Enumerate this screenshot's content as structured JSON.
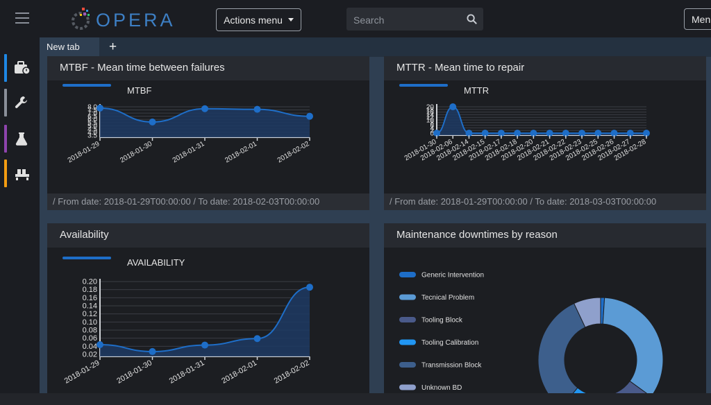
{
  "app": {
    "logo_text": "OPERA"
  },
  "toolbar": {
    "actions_label": "Actions menu",
    "search_placeholder": "Search",
    "menu_label": "Menu"
  },
  "sidebar": {
    "items": [
      {
        "name": "toolbox",
        "color": "#1e88e5"
      },
      {
        "name": "wrench",
        "color": "#8a8f99"
      },
      {
        "name": "flask",
        "color": "#8e44ad"
      },
      {
        "name": "factory",
        "color": "#f39c12"
      }
    ]
  },
  "tabs": {
    "items": [
      {
        "label": "New tab"
      }
    ],
    "add_label": "+"
  },
  "panels": {
    "mtbf": {
      "title": "MTBF - Mean time between failures",
      "legend": "MTBF",
      "footer": "/ From date: 2018-01-29T00:00:00 / To date: 2018-02-03T00:00:00"
    },
    "mttr": {
      "title": "MTTR - Mean time to repair",
      "legend": "MTTR",
      "footer": "/ From date: 2018-01-29T00:00:00 / To date: 2018-03-03T00:00:00"
    },
    "availability": {
      "title": "Availability",
      "legend": "AVAILABILITY"
    },
    "downtimes": {
      "title": "Maintenance downtimes by reason"
    }
  },
  "chart_data": [
    {
      "id": "mtbf",
      "type": "area",
      "title": "MTBF - Mean time between failures",
      "series": [
        {
          "name": "MTBF",
          "values": [
            7.8,
            5.6,
            7.7,
            7.6,
            6.5
          ]
        }
      ],
      "categories": [
        "2018-01-29",
        "2018-01-30",
        "2018-01-31",
        "2018-02-01",
        "2018-02-02"
      ],
      "yticks": [
        "8.0",
        "7.5",
        "7.0",
        "6.5",
        "6.0",
        "5.5",
        "5.0",
        "4.5",
        "4.0",
        "3.5"
      ],
      "ylim": [
        3.5,
        8.0
      ]
    },
    {
      "id": "mttr",
      "type": "area",
      "title": "MTTR - Mean time to repair",
      "series": [
        {
          "name": "MTTR",
          "values": [
            0,
            20,
            0,
            0,
            0,
            0,
            0,
            0,
            0,
            0,
            0,
            0,
            0,
            0
          ]
        }
      ],
      "categories": [
        "2018-01-30",
        "2018-02-06",
        "2018-02-14",
        "2018-02-15",
        "2018-02-17",
        "2018-02-18",
        "2018-02-20",
        "2018-02-21",
        "2018-02-22",
        "2018-02-23",
        "2018-02-25",
        "2018-02-26",
        "2018-02-27",
        "2018-02-28"
      ],
      "yticks": [
        "20",
        "18",
        "16",
        "14",
        "12",
        "10",
        "8",
        "6",
        "4",
        "2",
        "0"
      ],
      "ylim": [
        0,
        20
      ]
    },
    {
      "id": "availability",
      "type": "area",
      "title": "Availability",
      "series": [
        {
          "name": "AVAILABILITY",
          "values": [
            0.044,
            0.027,
            0.043,
            0.059,
            0.186
          ]
        }
      ],
      "categories": [
        "2018-01-29",
        "2018-01-30",
        "2018-01-31",
        "2018-02-01",
        "2018-02-02"
      ],
      "yticks": [
        "0.20",
        "0.18",
        "0.16",
        "0.14",
        "0.12",
        "0.10",
        "0.08",
        "0.06",
        "0.04",
        "0.02"
      ],
      "ylim": [
        0.02,
        0.2
      ]
    },
    {
      "id": "downtimes",
      "type": "pie",
      "title": "Maintenance downtimes by reason",
      "donut": true,
      "slices": [
        {
          "label": "Generic Intervention",
          "value": 1,
          "color": "#1e6ec8"
        },
        {
          "label": "Tecnical Problem",
          "value": 34,
          "color": "#5b9bd5"
        },
        {
          "label": "Tooling Block",
          "value": 10,
          "color": "#4a5a8a"
        },
        {
          "label": "Tooling Calibration",
          "value": 16,
          "color": "#2196f3"
        },
        {
          "label": "Transmission Block",
          "value": 32,
          "color": "#3d5f8c"
        },
        {
          "label": "Unknown BD",
          "value": 7,
          "color": "#8fa0cc"
        }
      ]
    }
  ]
}
